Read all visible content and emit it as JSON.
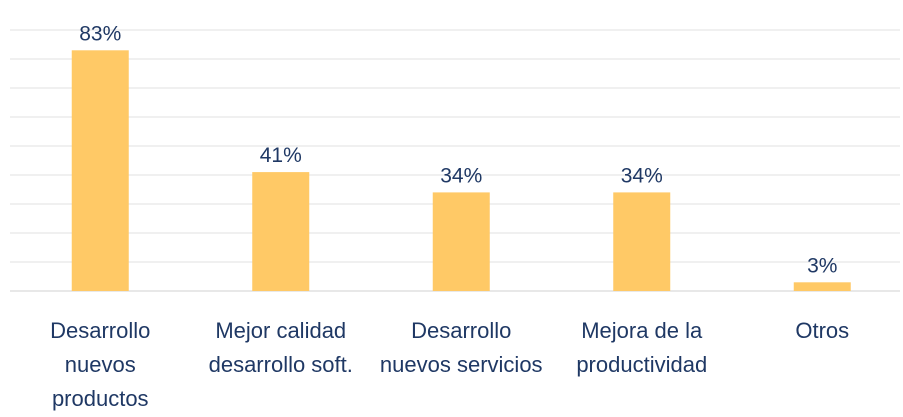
{
  "chart_data": {
    "type": "bar",
    "categories": [
      "Desarrollo nuevos productos",
      "Mejor calidad desarrollo soft.",
      "Desarrollo nuevos servicios",
      "Mejora de la productividad",
      "Otros"
    ],
    "values": [
      83,
      41,
      34,
      34,
      3
    ],
    "value_labels": [
      "83%",
      "41%",
      "34%",
      "34%",
      "3%"
    ],
    "color": "#ffc966",
    "ylim": [
      0,
      90
    ],
    "yticks": [
      0,
      10,
      20,
      30,
      40,
      50,
      60,
      70,
      80,
      90
    ],
    "grid": true
  }
}
